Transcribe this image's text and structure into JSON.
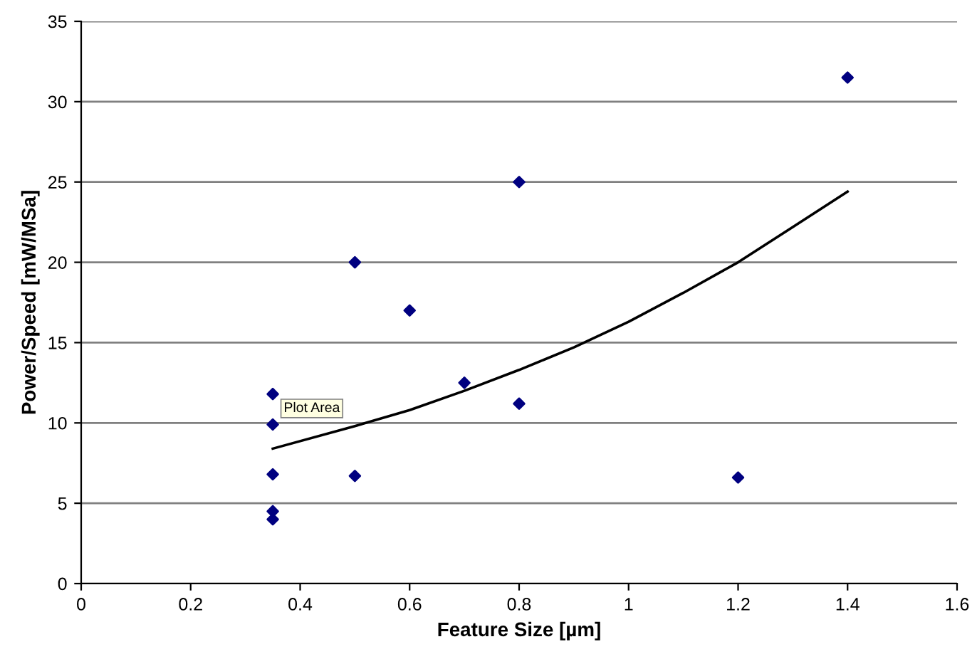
{
  "chart_data": {
    "type": "scatter",
    "xlabel": "Feature Size [µm]",
    "ylabel": "Power/Speed [mW/MSa]",
    "series": [
      {
        "color": "#000080",
        "marker": "diamond",
        "x": [
          0.35,
          0.35,
          0.35,
          0.35,
          0.35,
          0.5,
          0.5,
          0.6,
          0.7,
          0.8,
          0.8,
          1.2,
          1.4
        ],
        "values": [
          11.8,
          9.9,
          6.8,
          4.5,
          4.0,
          20,
          6.7,
          17,
          12.5,
          25,
          11.2,
          6.6,
          31.5
        ]
      },
      {
        "type": "line",
        "color": "#000000",
        "marker": "none",
        "x": [
          0.35,
          0.5,
          0.6,
          0.7,
          0.8,
          0.9,
          1.0,
          1.1,
          1.2,
          1.3,
          1.4
        ],
        "values": [
          8.4,
          9.8,
          10.8,
          12.0,
          13.3,
          14.7,
          16.3,
          18.1,
          20.0,
          22.2,
          24.4
        ]
      }
    ],
    "xlim": [
      0,
      1.6
    ],
    "xticks": [
      0,
      0.2,
      0.4,
      0.6,
      0.8,
      1,
      1.2,
      1.4,
      1.6
    ],
    "ylim": [
      0,
      35
    ],
    "yticks": [
      0,
      5,
      10,
      15,
      20,
      25,
      30,
      35
    ],
    "grid": "y",
    "legend": false,
    "annotations": [
      "Plot Area"
    ]
  }
}
